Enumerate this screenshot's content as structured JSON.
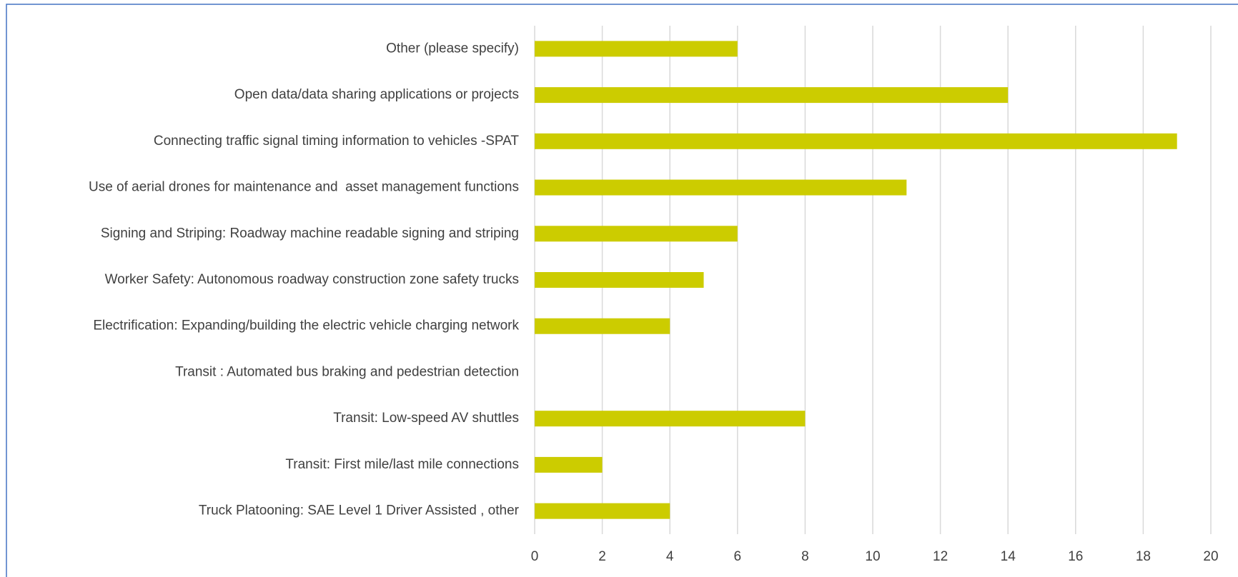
{
  "chart_data": {
    "type": "bar",
    "orientation": "horizontal",
    "categories": [
      "Other (please specify)",
      "Open data/data sharing applications or projects",
      "Connecting traffic signal timing information to vehicles -SPAT",
      "Use of aerial drones for maintenance and  asset management functions",
      "Signing and Striping: Roadway machine readable signing and striping",
      "Worker Safety: Autonomous roadway construction zone safety trucks",
      "Electrification: Expanding/building the electric vehicle charging network",
      "Transit : Automated bus braking and pedestrian detection",
      "Transit: Low-speed AV shuttles",
      "Transit: First mile/last mile connections",
      "Truck Platooning: SAE Level 1 Driver Assisted , other"
    ],
    "values": [
      6,
      14,
      19,
      11,
      6,
      5,
      4,
      0,
      8,
      2,
      4
    ],
    "color": "#cccc00",
    "xlim": [
      0,
      20
    ],
    "xticks": [
      0,
      2,
      4,
      6,
      8,
      10,
      12,
      14,
      16,
      18,
      20
    ],
    "grid": true
  }
}
